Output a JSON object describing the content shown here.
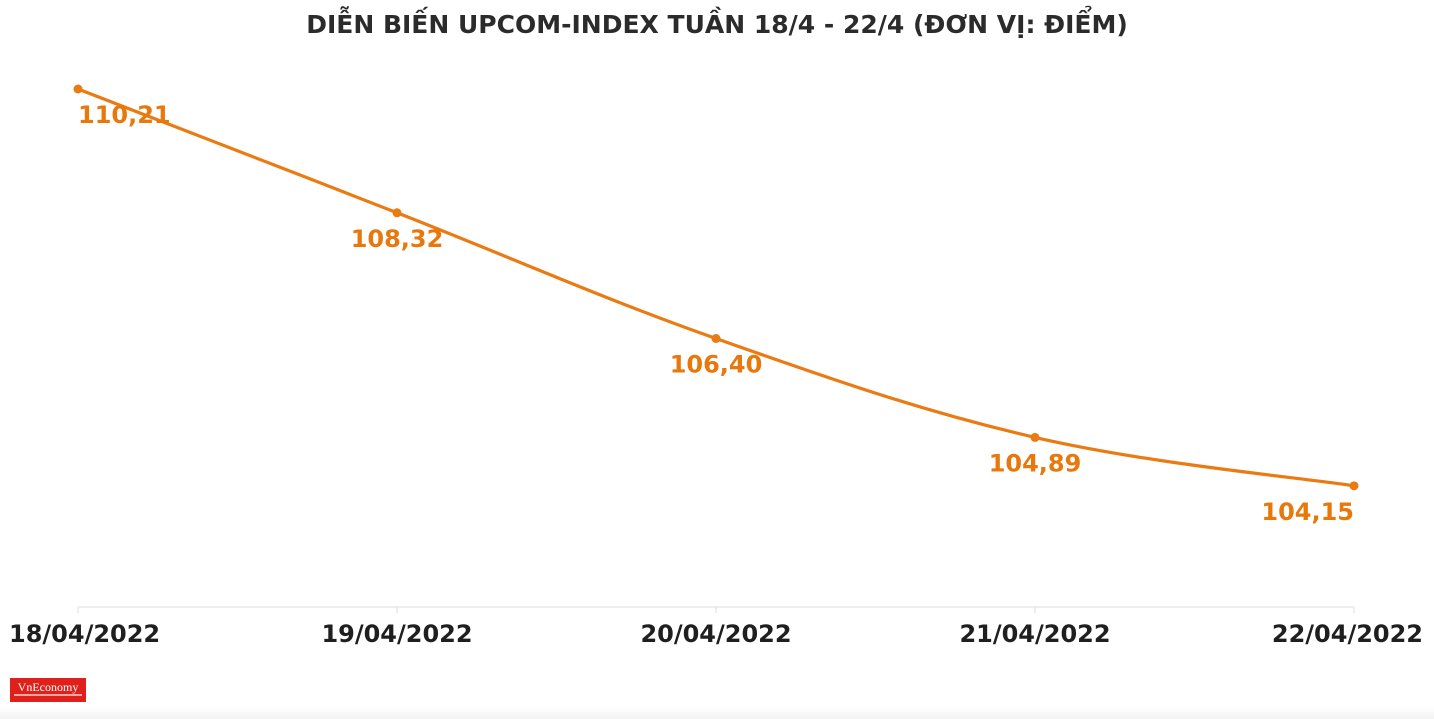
{
  "chart_data": {
    "type": "line",
    "title": "DIỄN BIẾN UPCOM-INDEX TUẦN 18/4 - 22/4 (ĐƠN VỊ: ĐIỂM)",
    "categories": [
      "18/04/2022",
      "19/04/2022",
      "20/04/2022",
      "21/04/2022",
      "22/04/2022"
    ],
    "series": [
      {
        "values": [
          110.21,
          108.32,
          106.4,
          104.89,
          104.15
        ],
        "labels": [
          "110,21",
          "108,32",
          "106,40",
          "104,89",
          "104,15"
        ],
        "color": "#ea7a12"
      }
    ],
    "xlabel": "",
    "ylabel": "",
    "ylim": [
      102.3,
      110.21
    ],
    "grid": false,
    "legend": "none",
    "label_color": "#e8780c",
    "axis_color": "#dddddd",
    "tick_label_color": "#1f1f1f"
  },
  "branding": {
    "logo_text": "VnEconomy",
    "logo_color": "#e0201b"
  }
}
